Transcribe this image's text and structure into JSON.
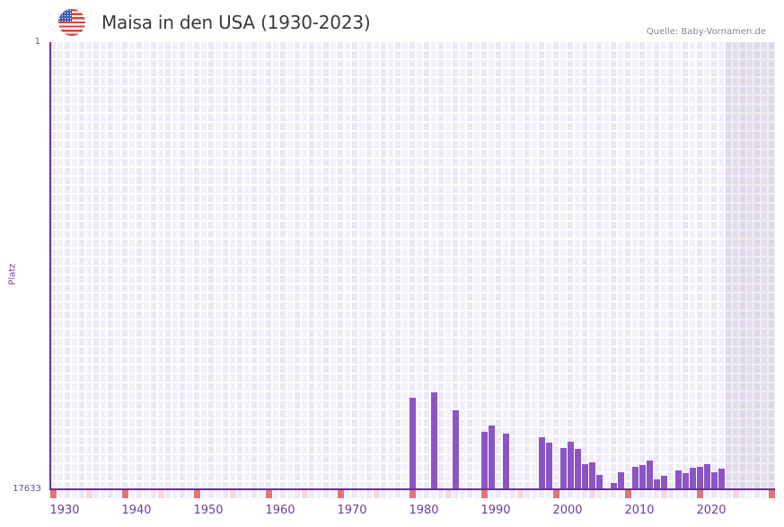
{
  "header": {
    "flag_icon": "us-flag-icon",
    "title": "Maisa in den USA (1930-2023)",
    "source": "Quelle: Baby-Vornamen.de"
  },
  "axes": {
    "y_top_label": "1",
    "y_bottom_label": "17633",
    "y_title": "Platz",
    "x_labels": [
      "1930",
      "1940",
      "1950",
      "1960",
      "1970",
      "1980",
      "1990",
      "2000",
      "2010",
      "2020"
    ]
  },
  "colors": {
    "bar": "#8b55c6",
    "axis": "#6a2f9a",
    "decade_marker": "#e5737c",
    "half_decade_marker": "#f5d8e0"
  },
  "chart_data": {
    "type": "bar",
    "title": "Maisa in den USA (1930-2023)",
    "xlabel": "",
    "ylabel": "Platz",
    "ylim": [
      17633,
      1
    ],
    "y_inverted": true,
    "x_range": [
      1928,
      2028
    ],
    "shaded_future_from": 2022,
    "grid": true,
    "legend": null,
    "categories": [
      1978,
      1981,
      1984,
      1988,
      1989,
      1991,
      1996,
      1997,
      1999,
      2000,
      2001,
      2002,
      2003,
      2004,
      2006,
      2007,
      2009,
      2010,
      2011,
      2012,
      2013,
      2015,
      2016,
      2017,
      2018,
      2019,
      2020,
      2021
    ],
    "values": [
      14021,
      13809,
      14517,
      15367,
      15119,
      15438,
      15580,
      15792,
      16004,
      15757,
      16040,
      16642,
      16571,
      17067,
      17385,
      16960,
      16748,
      16677,
      16500,
      17244,
      17102,
      16889,
      16996,
      16783,
      16748,
      16642,
      16960,
      16819
    ]
  }
}
